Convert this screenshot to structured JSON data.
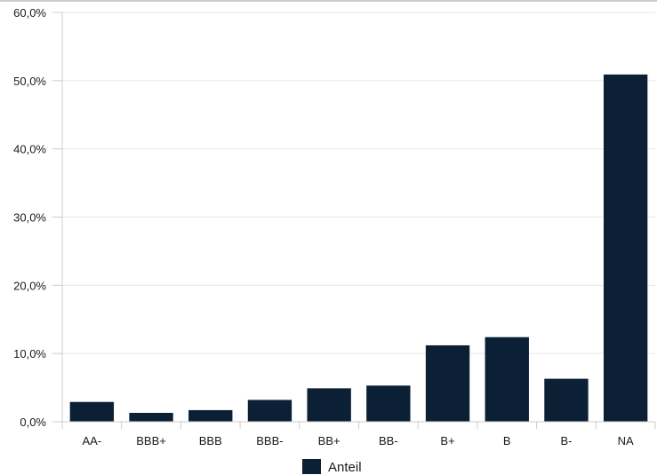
{
  "chart_data": {
    "type": "bar",
    "categories": [
      "AA-",
      "BBB+",
      "BBB",
      "BBB-",
      "BB+",
      "BB-",
      "B+",
      "B",
      "B-",
      "NA"
    ],
    "series": [
      {
        "name": "Anteil",
        "values": [
          2.9,
          1.3,
          1.7,
          3.2,
          4.9,
          5.3,
          11.2,
          12.4,
          6.3,
          50.9
        ]
      }
    ],
    "yticks": [
      "0,0%",
      "10,0%",
      "20,0%",
      "30,0%",
      "40,0%",
      "50,0%",
      "60,0%"
    ],
    "ylim": [
      0,
      60
    ],
    "title": "",
    "xlabel": "",
    "ylabel": "",
    "grid": true,
    "legend": "bottom-center",
    "colors": {
      "bar": "#0b1f35",
      "grid": "#e6e6e6",
      "axis": "#cccccc"
    }
  }
}
